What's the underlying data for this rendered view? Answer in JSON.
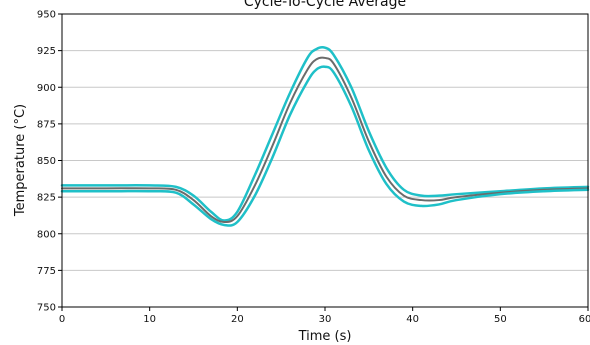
{
  "chart_data": {
    "type": "line",
    "title": "Cycle-To-Cycle Average",
    "xlabel": "Time (s)",
    "ylabel": "Temperature (°C)",
    "xlim": [
      0,
      60
    ],
    "ylim": [
      750,
      950
    ],
    "xticks": [
      0,
      10,
      20,
      30,
      40,
      50,
      60
    ],
    "yticks": [
      750,
      775,
      800,
      825,
      850,
      875,
      900,
      925,
      950
    ],
    "grid": "horizontal",
    "legend": "none",
    "series": [
      {
        "role": "upper-band",
        "color": "#1fc0c8",
        "x": [
          0,
          5,
          10,
          13,
          15,
          17,
          18.5,
          20,
          22,
          24,
          26,
          28,
          29,
          30,
          31,
          33,
          35,
          37,
          39,
          41,
          43,
          45,
          50,
          55,
          60
        ],
        "y": [
          833,
          833,
          833,
          832,
          826,
          815,
          809,
          815,
          840,
          868,
          896,
          920,
          926,
          927,
          922,
          900,
          870,
          845,
          830,
          826,
          826,
          827,
          829,
          831,
          832
        ]
      },
      {
        "role": "mean",
        "color": "#6b6b6b",
        "x": [
          0,
          5,
          10,
          13,
          15,
          17,
          18.5,
          20,
          22,
          24,
          26,
          28,
          29,
          30,
          31,
          33,
          35,
          37,
          39,
          41,
          43,
          45,
          50,
          55,
          60
        ],
        "y": [
          831,
          831,
          831,
          830,
          823,
          812,
          808,
          812,
          833,
          860,
          889,
          912,
          919,
          920,
          916,
          893,
          863,
          839,
          826,
          823,
          823,
          825,
          828,
          830,
          831
        ]
      },
      {
        "role": "lower-band",
        "color": "#1fc0c8",
        "x": [
          0,
          5,
          10,
          13,
          15,
          17,
          18.5,
          20,
          22,
          24,
          26,
          28,
          29,
          30,
          31,
          33,
          35,
          37,
          39,
          41,
          43,
          45,
          50,
          55,
          60
        ],
        "y": [
          829,
          829,
          829,
          828,
          820,
          810,
          806,
          808,
          826,
          852,
          881,
          904,
          912,
          914,
          910,
          887,
          857,
          834,
          822,
          819,
          820,
          823,
          827,
          829,
          830
        ]
      }
    ]
  }
}
